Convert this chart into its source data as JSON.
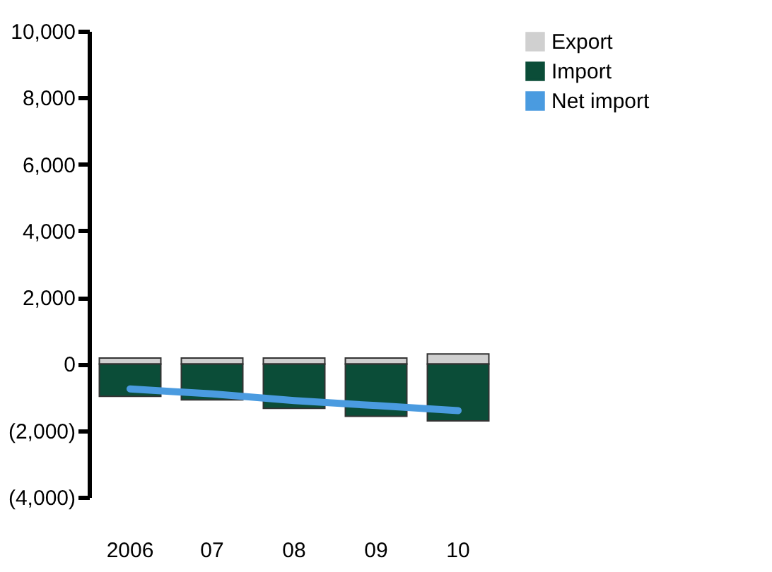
{
  "chart_data": {
    "type": "bar",
    "stacked": true,
    "categories": [
      "2006",
      "07",
      "08",
      "09",
      "10"
    ],
    "series": [
      {
        "name": "Export",
        "color": "#d0d0d0",
        "values": [
          180,
          180,
          180,
          180,
          300
        ]
      },
      {
        "name": "Import",
        "color": "#0b4d38",
        "values": [
          -970,
          -1080,
          -1330,
          -1570,
          -1710
        ]
      },
      {
        "name": "Net import",
        "type": "line",
        "color": "#4a9be0",
        "values": [
          -750,
          -900,
          -1100,
          -1250,
          -1400
        ]
      }
    ],
    "ylim": [
      -4000,
      10000
    ],
    "yticks": [
      {
        "value": -4000,
        "label": "(4,000)"
      },
      {
        "value": -2000,
        "label": "(2,000)"
      },
      0,
      {
        "value": 2000,
        "label": "2,000"
      },
      {
        "value": 4000,
        "label": "4,000"
      },
      {
        "value": 6000,
        "label": "6,000"
      },
      {
        "value": 8000,
        "label": "8,000"
      },
      {
        "value": 10000,
        "label": "10,000"
      }
    ],
    "grid": false,
    "legend": "right"
  }
}
